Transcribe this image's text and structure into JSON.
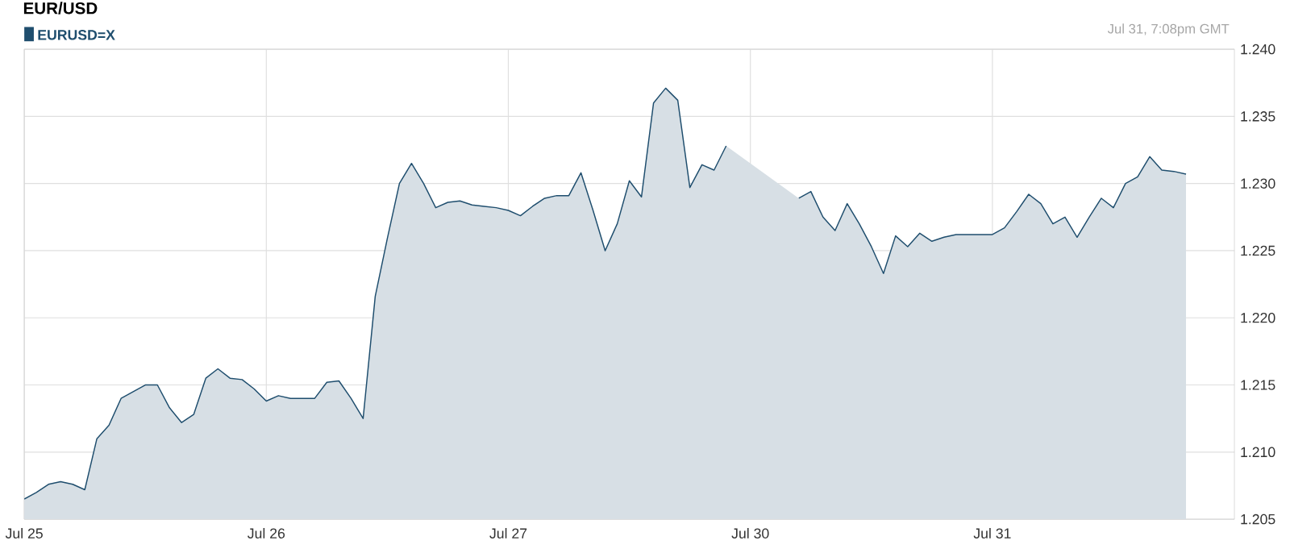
{
  "chart_data": {
    "type": "area",
    "title": "EUR/USD",
    "annotations": [
      "Jul 31, 7:08pm GMT"
    ],
    "categories": [
      "Jul 25",
      null,
      null,
      null,
      null,
      null,
      null,
      null,
      null,
      null,
      null,
      null,
      null,
      null,
      null,
      null,
      null,
      null,
      null,
      null,
      "Jul 26",
      null,
      null,
      null,
      null,
      null,
      null,
      null,
      null,
      null,
      null,
      null,
      null,
      null,
      null,
      null,
      null,
      null,
      null,
      null,
      "Jul 27",
      null,
      null,
      null,
      null,
      null,
      null,
      null,
      null,
      null,
      null,
      null,
      null,
      null,
      null,
      null,
      null,
      null,
      null,
      null,
      "Jul 30",
      null,
      null,
      null,
      null,
      null,
      null,
      null,
      null,
      null,
      null,
      null,
      null,
      null,
      null,
      null,
      null,
      null,
      null,
      null,
      "Jul 31",
      null,
      null,
      null,
      null,
      null,
      null,
      null,
      null,
      null,
      null,
      null,
      null,
      null,
      null,
      null,
      null,
      null,
      null,
      null,
      null
    ],
    "series": [
      {
        "name": "EURUSD=X",
        "color": "#1f4e6e",
        "values": [
          1.2065,
          1.207,
          1.2076,
          1.2078,
          1.2076,
          1.2072,
          1.211,
          1.212,
          1.214,
          1.2145,
          1.215,
          1.215,
          1.2133,
          1.2122,
          1.2128,
          1.2155,
          1.2162,
          1.2155,
          1.2154,
          1.2147,
          1.2138,
          1.2142,
          1.214,
          1.214,
          1.214,
          1.2152,
          1.2153,
          1.214,
          1.2125,
          1.2216,
          1.2259,
          1.23,
          1.2315,
          1.23,
          1.2282,
          1.2286,
          1.2287,
          1.2284,
          1.2283,
          1.2282,
          1.228,
          1.2276,
          1.2283,
          1.2289,
          1.2291,
          1.2291,
          1.2308,
          1.228,
          1.225,
          1.227,
          1.2302,
          1.229,
          1.236,
          1.2371,
          1.2362,
          1.2297,
          1.2314,
          1.231,
          1.2328,
          null,
          null,
          null,
          null,
          null,
          1.2289,
          1.2294,
          1.2275,
          1.2265,
          1.2285,
          1.227,
          1.2253,
          1.2233,
          1.2261,
          1.2253,
          1.2263,
          1.2257,
          1.226,
          1.2262,
          1.2262,
          1.2262,
          1.2262,
          1.2267,
          1.2279,
          1.2292,
          1.2285,
          1.227,
          1.2275,
          1.226,
          1.2275,
          1.2289,
          1.2282,
          1.23,
          1.2305,
          1.232,
          1.231,
          1.2309,
          1.2307,
          null,
          null,
          null,
          null
        ]
      }
    ],
    "ylim": [
      1.205,
      1.24
    ],
    "yticks": [
      1.205,
      {
        "value": 1.21,
        "label": "1.210"
      },
      1.215,
      {
        "value": 1.22,
        "label": "1.220"
      },
      1.225,
      {
        "value": 1.23,
        "label": "1.230"
      },
      1.235,
      {
        "value": 1.24,
        "label": "1.240"
      }
    ],
    "grid": true,
    "legend": "top left",
    "marker": "none",
    "line_style": "solid"
  }
}
